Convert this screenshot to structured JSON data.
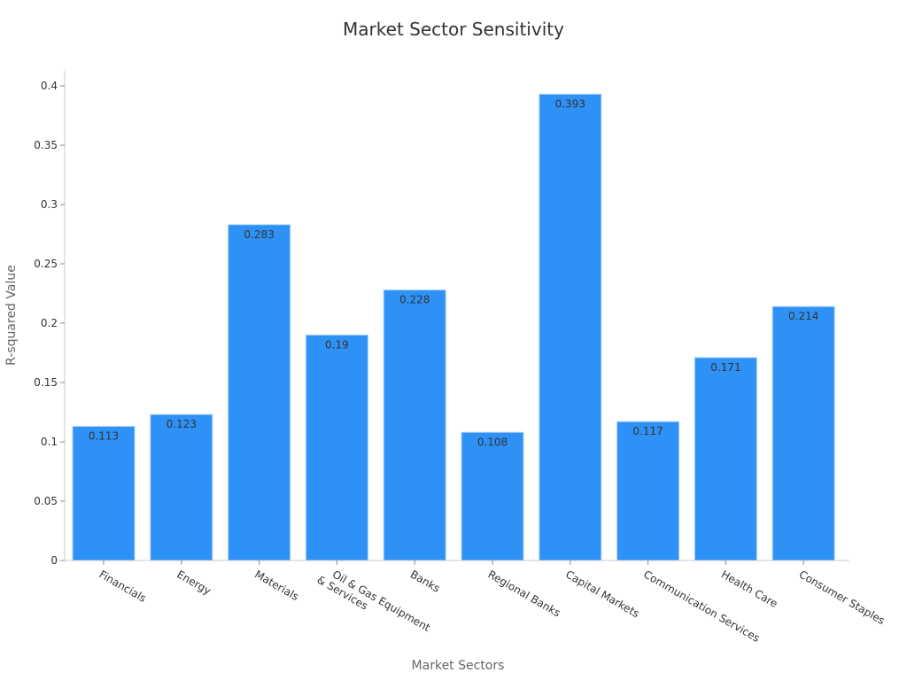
{
  "chart_data": {
    "type": "bar",
    "title": "Market Sector Sensitivity",
    "xlabel": "Market Sectors",
    "ylabel": "R-squared Value",
    "categories": [
      "Financials",
      "Energy",
      "Materials",
      "Oil & Gas Equipment\n& Services",
      "Banks",
      "Regional Banks",
      "Capital Markets",
      "Communication Services",
      "Health Care",
      "Consumer Staples"
    ],
    "values": [
      0.113,
      0.123,
      0.283,
      0.19,
      0.228,
      0.108,
      0.393,
      0.117,
      0.171,
      0.214
    ],
    "value_labels": [
      "0.113",
      "0.123",
      "0.283",
      "0.19",
      "0.228",
      "0.108",
      "0.393",
      "0.117",
      "0.171",
      "0.214"
    ],
    "ylim": [
      0,
      0.4
    ],
    "yticks": [
      0,
      0.05,
      0.1,
      0.15,
      0.2,
      0.25,
      0.3,
      0.35,
      0.4
    ],
    "ytick_labels": [
      "0",
      "0.05",
      "0.1",
      "0.15",
      "0.2",
      "0.25",
      "0.3",
      "0.35",
      "0.4"
    ],
    "grid": false,
    "legend": null,
    "bar_color": "#2e91f5",
    "bar_edge_color": "#a8d0f8"
  }
}
